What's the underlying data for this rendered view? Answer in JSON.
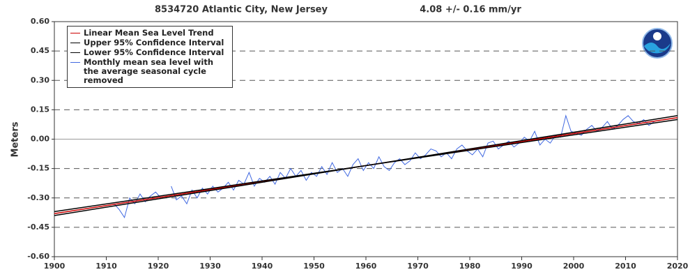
{
  "chart_data": {
    "type": "line",
    "title": "8534720 Atlantic City, New Jersey",
    "subtitle": "4.08 +/-  0.16 mm/yr",
    "ylabel": "Meters",
    "xlim": [
      1900,
      2020
    ],
    "xticks": [
      1900,
      1910,
      1920,
      1930,
      1940,
      1950,
      1960,
      1970,
      1980,
      1990,
      2000,
      2010,
      2020
    ],
    "ylim": [
      -0.6,
      0.6
    ],
    "yticks": [
      {
        "value": -0.6,
        "label": "-0.60"
      },
      {
        "value": -0.45,
        "label": "-0.45"
      },
      {
        "value": -0.3,
        "label": "-0.30"
      },
      {
        "value": -0.15,
        "label": "-0.15"
      },
      {
        "value": 0,
        "label": "0.00"
      },
      {
        "value": 0.15,
        "label": "0.15"
      },
      {
        "value": 0.3,
        "label": "0.30"
      },
      {
        "value": 0.45,
        "label": "0.45"
      },
      {
        "value": 0.6,
        "label": "0.60"
      }
    ],
    "grid": true,
    "legend": "upper left",
    "series": [
      {
        "name": "Linear Mean Sea Level Trend",
        "color": "#cc0000",
        "x": [
          1900,
          2020
        ],
        "values": [
          -0.38,
          0.11
        ]
      },
      {
        "name": "Upper 95% Confidence Interval",
        "color": "#000000",
        "x": [
          1900,
          2020
        ],
        "values": [
          -0.39,
          0.12
        ]
      },
      {
        "name": "Lower 95% Confidence Interval",
        "color": "#000000",
        "x": [
          1900,
          2020
        ],
        "values": [
          -0.37,
          0.1
        ]
      },
      {
        "name": "Monthly mean sea level with the average seasonal cycle removed",
        "color": "#4169e1",
        "x": [
          1911.5,
          1912.5,
          1913.5,
          1914.5,
          1915.5,
          1916.5,
          1917.5,
          1918.5,
          1919.5,
          1920.5,
          1921.5,
          1922.5,
          1923.5,
          1924.5,
          1925.5,
          1926.5,
          1927.5,
          1928.5,
          1929.5,
          1930.5,
          1931.5,
          1932.5,
          1933.5,
          1934.5,
          1935.5,
          1936.5,
          1937.5,
          1938.5,
          1939.5,
          1940.5,
          1941.5,
          1942.5,
          1943.5,
          1944.5,
          1945.5,
          1946.5,
          1947.5,
          1948.5,
          1949.5,
          1950.5,
          1951.5,
          1952.5,
          1953.5,
          1954.5,
          1955.5,
          1956.5,
          1957.5,
          1958.5,
          1959.5,
          1960.5,
          1961.5,
          1962.5,
          1963.5,
          1964.5,
          1965.5,
          1966.5,
          1967.5,
          1968.5,
          1969.5,
          1970.5,
          1971.5,
          1972.5,
          1973.5,
          1974.5,
          1975.5,
          1976.5,
          1977.5,
          1978.5,
          1979.5,
          1980.5,
          1981.5,
          1982.5,
          1983.5,
          1984.5,
          1985.5,
          1986.5,
          1987.5,
          1988.5,
          1989.5,
          1990.5,
          1991.5,
          1992.5,
          1993.5,
          1994.5,
          1995.5,
          1996.5,
          1997.5,
          1998.5,
          1999.5,
          2000.5,
          2001.5,
          2002.5,
          2003.5,
          2004.5,
          2005.5,
          2006.5,
          2007.5,
          2008.5,
          2009.5,
          2010.5,
          2011.5,
          2012.5,
          2013.5,
          2014.5,
          2015.5
        ],
        "values": [
          -0.33,
          -0.36,
          -0.4,
          -0.3,
          -0.33,
          -0.28,
          -0.32,
          -0.29,
          -0.27,
          -0.3,
          null,
          -0.24,
          -0.31,
          -0.29,
          -0.33,
          -0.26,
          -0.3,
          -0.25,
          -0.28,
          -0.24,
          -0.27,
          -0.25,
          -0.22,
          -0.26,
          -0.21,
          -0.23,
          -0.17,
          -0.24,
          -0.2,
          -0.22,
          -0.19,
          -0.23,
          -0.17,
          -0.2,
          -0.15,
          -0.19,
          -0.16,
          -0.21,
          -0.17,
          -0.19,
          -0.14,
          -0.18,
          -0.12,
          -0.17,
          -0.15,
          -0.19,
          -0.13,
          -0.1,
          -0.16,
          -0.12,
          -0.15,
          -0.09,
          -0.14,
          -0.16,
          -0.12,
          -0.1,
          -0.13,
          -0.11,
          -0.07,
          -0.1,
          -0.08,
          -0.05,
          -0.06,
          -0.09,
          -0.07,
          -0.1,
          -0.05,
          -0.03,
          -0.06,
          -0.08,
          -0.05,
          -0.09,
          -0.02,
          -0.01,
          -0.05,
          -0.03,
          -0.01,
          -0.04,
          -0.02,
          0.01,
          -0.01,
          0.04,
          -0.03,
          0.0,
          -0.02,
          0.02,
          0.01,
          0.12,
          0.04,
          0.03,
          0.02,
          0.05,
          0.07,
          0.04,
          0.06,
          0.09,
          0.05,
          0.07,
          0.1,
          0.12,
          0.09,
          0.08,
          0.1,
          0.07,
          0.09
        ]
      }
    ]
  }
}
